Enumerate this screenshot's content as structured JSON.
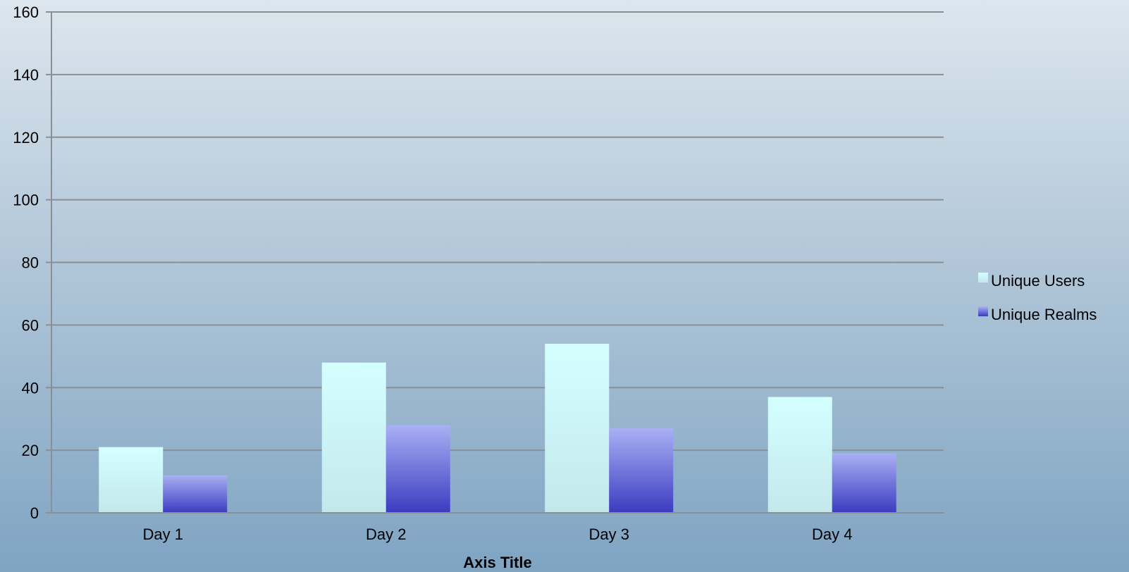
{
  "chart_data": {
    "type": "bar",
    "categories": [
      "Day 1",
      "Day 2",
      "Day 3",
      "Day 4"
    ],
    "series": [
      {
        "name": "Unique Users",
        "values": [
          21,
          48,
          54,
          37
        ],
        "color_top": "#d4ffff",
        "color_bottom": "#c2e8ec"
      },
      {
        "name": "Unique Realms",
        "values": [
          12,
          28,
          27,
          19
        ],
        "color_top": "#aab0f4",
        "color_bottom": "#3a3cc0"
      }
    ],
    "xlabel": "Axis Title",
    "ylabel": "",
    "ylim": [
      0,
      160
    ],
    "yticks": [
      0,
      20,
      40,
      60,
      80,
      100,
      120,
      140,
      160
    ],
    "grid": true,
    "legend_position": "right"
  }
}
